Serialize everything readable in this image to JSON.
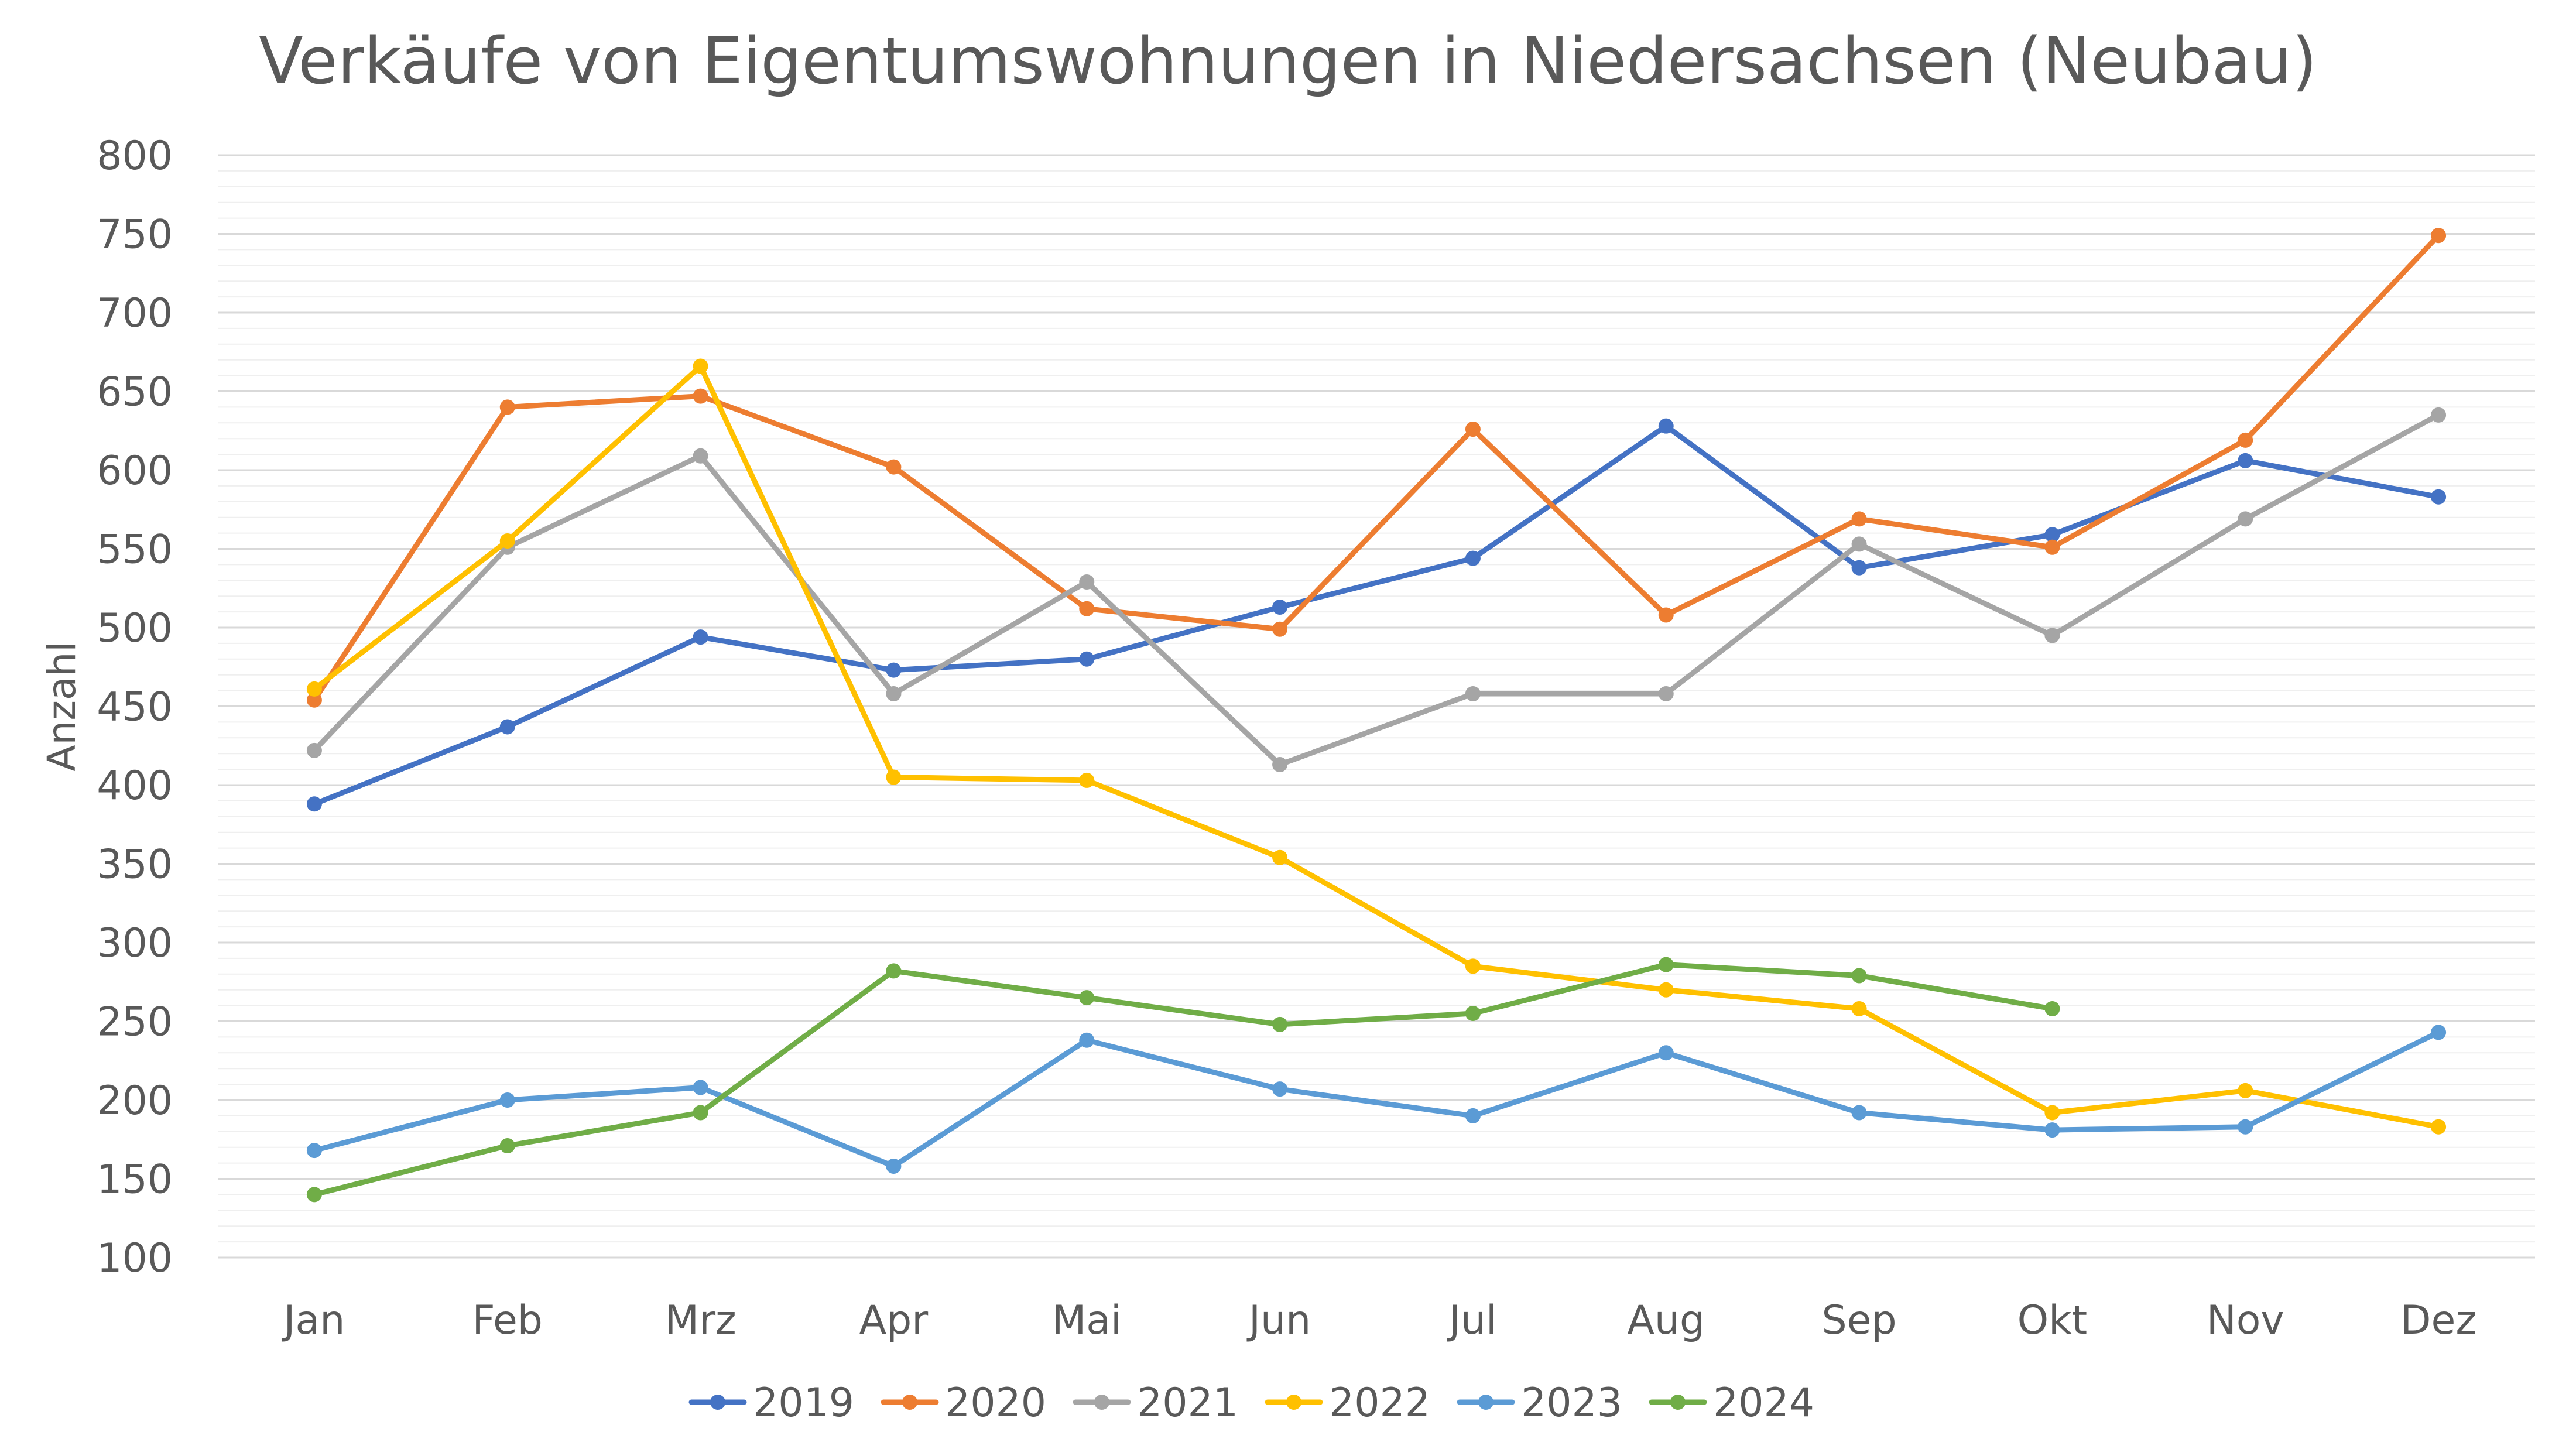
{
  "chart_data": {
    "type": "line",
    "title": "Verkäufe von Eigentumswohnungen in Niedersachsen (Neubau)",
    "xlabel": "",
    "ylabel": "Anzahl",
    "categories": [
      "Jan",
      "Feb",
      "Mrz",
      "Apr",
      "Mai",
      "Jun",
      "Jul",
      "Aug",
      "Sep",
      "Okt",
      "Nov",
      "Dez"
    ],
    "ylim": [
      100,
      800
    ],
    "yticks": [
      100,
      150,
      200,
      250,
      300,
      350,
      400,
      450,
      500,
      550,
      600,
      650,
      700,
      750,
      800
    ],
    "grid": true,
    "legend": "bottom",
    "series": [
      {
        "name": "2019",
        "color": "#4472C4",
        "values": [
          388,
          437,
          494,
          473,
          480,
          513,
          544,
          628,
          538,
          559,
          606,
          583
        ]
      },
      {
        "name": "2020",
        "color": "#ED7D31",
        "values": [
          454,
          640,
          647,
          602,
          512,
          499,
          626,
          508,
          569,
          551,
          619,
          749
        ]
      },
      {
        "name": "2021",
        "color": "#A5A5A5",
        "values": [
          422,
          551,
          609,
          458,
          529,
          413,
          458,
          458,
          553,
          495,
          569,
          635
        ]
      },
      {
        "name": "2022",
        "color": "#FFC000",
        "values": [
          461,
          555,
          666,
          405,
          403,
          354,
          285,
          270,
          258,
          192,
          206,
          183
        ]
      },
      {
        "name": "2023",
        "color": "#5B9BD5",
        "values": [
          168,
          200,
          208,
          158,
          238,
          207,
          190,
          230,
          192,
          181,
          183,
          243
        ]
      },
      {
        "name": "2024",
        "color": "#70AD47",
        "values": [
          140,
          171,
          192,
          282,
          265,
          248,
          255,
          286,
          279,
          258,
          null,
          null
        ]
      }
    ]
  }
}
